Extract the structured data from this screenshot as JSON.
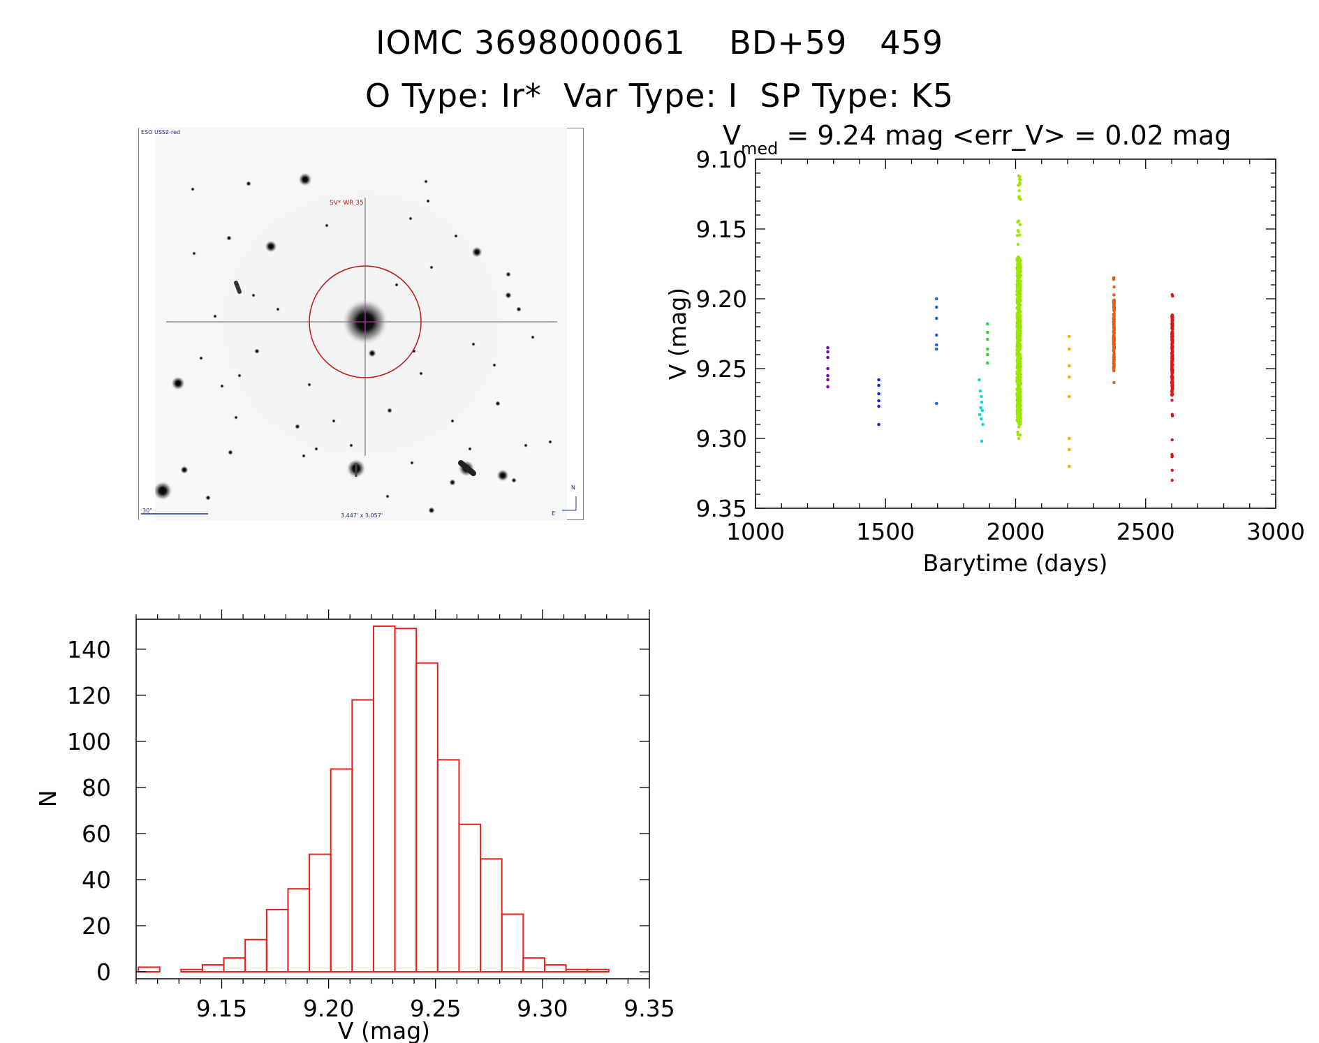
{
  "header": {
    "line1": "IOMC 3698000061    BD+59   459",
    "line2": "O Type: Ir*  Var Type: I  SP Type: K5"
  },
  "finder": {
    "survey_label": "ESO USS2-red",
    "target_label": "SV* WR 35",
    "scale_label": "30\"",
    "size_label": "3.447' x 3.057'",
    "north_label": "N",
    "east_label": "E",
    "circle_color": "#c01818",
    "target_color": "#d040d0"
  },
  "chart_data": [
    {
      "type": "scatter",
      "title_prefix": "V",
      "title_sub": "med",
      "title_rest": " = 9.24 mag <err_V> = 0.02 mag",
      "xlabel": "Barytime (days)",
      "ylabel": "V (mag)",
      "xlim": [
        1000,
        3000
      ],
      "ylim": [
        9.35,
        9.1
      ],
      "xticks": [
        "1000",
        "1500",
        "2000",
        "2500",
        "3000"
      ],
      "yticks": [
        "9.10",
        "9.15",
        "9.20",
        "9.25",
        "9.30",
        "9.35"
      ],
      "series": [
        {
          "color": "#6a0fa0",
          "x": [
            1278,
            1278,
            1278,
            1278,
            1278,
            1278,
            1278
          ],
          "y": [
            9.235,
            9.238,
            9.242,
            9.25,
            9.255,
            9.258,
            9.263
          ]
        },
        {
          "color": "#1a2ad8",
          "x": [
            1474,
            1474,
            1474,
            1474,
            1474,
            1474
          ],
          "y": [
            9.258,
            9.262,
            9.268,
            9.273,
            9.277,
            9.29
          ]
        },
        {
          "color": "#1a6ad8",
          "x": [
            1696,
            1696,
            1696,
            1696,
            1696,
            1696,
            1696
          ],
          "y": [
            9.2,
            9.206,
            9.214,
            9.226,
            9.233,
            9.236,
            9.275
          ]
        },
        {
          "color": "#10d8d8",
          "x": [
            1860,
            1864,
            1868,
            1870,
            1866,
            1872,
            1862,
            1868,
            1874,
            1870
          ],
          "y": [
            9.258,
            9.266,
            9.27,
            9.274,
            9.278,
            9.28,
            9.283,
            9.286,
            9.29,
            9.302
          ]
        },
        {
          "color": "#30d830",
          "x": [
            1892,
            1892,
            1892,
            1892,
            1892,
            1892
          ],
          "y": [
            9.218,
            9.224,
            9.229,
            9.236,
            9.24,
            9.246
          ]
        },
        {
          "color": "#9ae600",
          "dense": true,
          "x_center": 2012,
          "x_spread": 14,
          "y_min": 9.112,
          "y_max": 9.3,
          "y_core_min": 9.17,
          "y_core_max": 9.29
        },
        {
          "color": "#ffae00",
          "x": [
            2206,
            2206,
            2206,
            2206,
            2206,
            2206,
            2206,
            2206
          ],
          "y": [
            9.227,
            9.236,
            9.248,
            9.256,
            9.27,
            9.3,
            9.308,
            9.32
          ]
        },
        {
          "color": "#e85a10",
          "dense": true,
          "x_center": 2378,
          "x_spread": 3,
          "y_min": 9.185,
          "y_max": 9.26,
          "y_core_min": 9.2,
          "y_core_max": 9.25
        },
        {
          "color": "#d81818",
          "dense": true,
          "x_center": 2602,
          "x_spread": 3,
          "y_min": 9.197,
          "y_max": 9.33,
          "y_core_min": 9.21,
          "y_core_max": 9.27
        }
      ]
    },
    {
      "type": "bar",
      "subtype": "histogram",
      "xlabel": "V (mag)",
      "ylabel": "N",
      "xlim": [
        9.11,
        9.35
      ],
      "ylim": [
        0,
        150
      ],
      "xticks": [
        "9.15",
        "9.20",
        "9.25",
        "9.30",
        "9.35"
      ],
      "yticks": [
        "0",
        "20",
        "40",
        "60",
        "80",
        "100",
        "120",
        "140"
      ],
      "bin_start": 9.111,
      "bin_width": 0.01,
      "values": [
        2,
        0,
        1,
        3,
        6,
        14,
        27,
        36,
        51,
        88,
        118,
        150,
        149,
        134,
        92,
        64,
        49,
        25,
        6,
        3,
        1,
        1
      ],
      "color": "#e8201c"
    }
  ]
}
